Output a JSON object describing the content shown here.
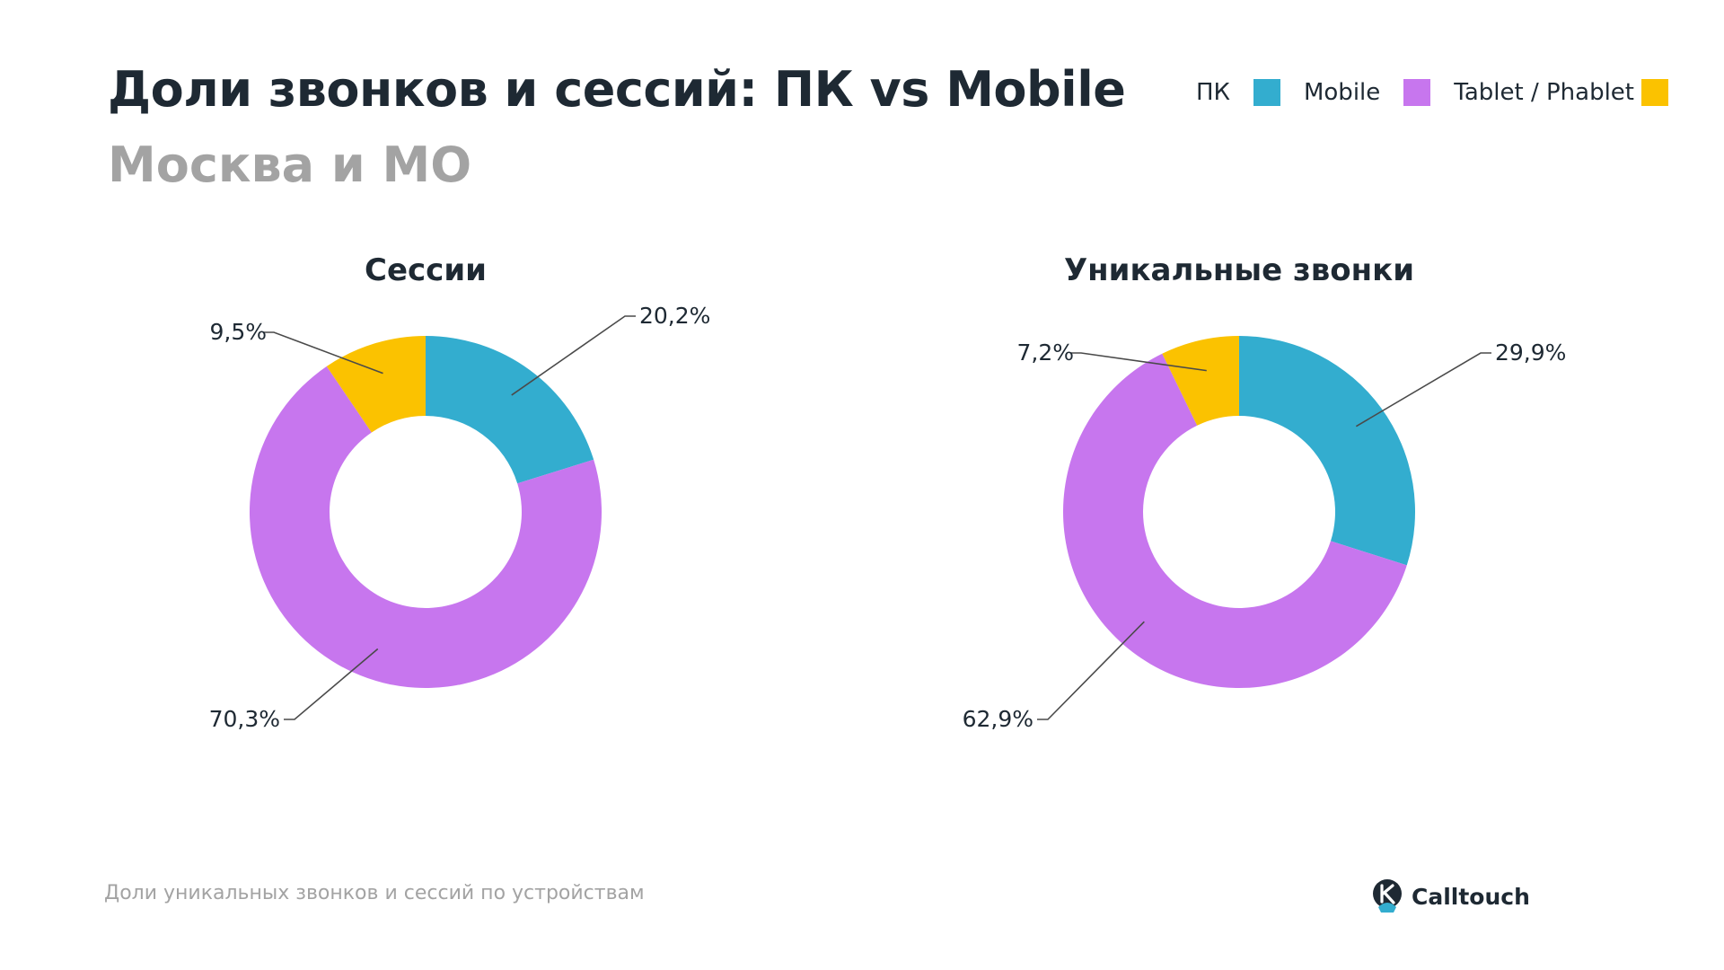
{
  "header": {
    "title": "Доли звонков и сессий: ПК vs Mobile",
    "subtitle": "Москва и МО"
  },
  "legend": [
    {
      "label": "ПК",
      "color": "#33adcf"
    },
    {
      "label": "Mobile",
      "color": "#c776ee"
    },
    {
      "label": "Tablet / Phablet",
      "color": "#fbc200"
    }
  ],
  "chart_data": [
    {
      "type": "pie",
      "title": "Сессии",
      "categories": [
        "ПК",
        "Mobile",
        "Tablet / Phablet"
      ],
      "values": [
        20.2,
        70.3,
        9.5
      ],
      "labels": [
        "20,2%",
        "70,3%",
        "9,5%"
      ],
      "colors": [
        "#33adcf",
        "#c776ee",
        "#fbc200"
      ],
      "legend": "top-right"
    },
    {
      "type": "pie",
      "title": "Уникальные звонки",
      "categories": [
        "ПК",
        "Mobile",
        "Tablet / Phablet"
      ],
      "values": [
        29.9,
        62.9,
        7.2
      ],
      "labels": [
        "29,9%",
        "62,9%",
        "7,2%"
      ],
      "colors": [
        "#33adcf",
        "#c776ee",
        "#fbc200"
      ],
      "legend": "top-right"
    }
  ],
  "footer": {
    "note": "Доли уникальных звонков и сессий по устройствам",
    "brand": "Calltouch",
    "brand_icon": "calltouch-logo-icon"
  }
}
